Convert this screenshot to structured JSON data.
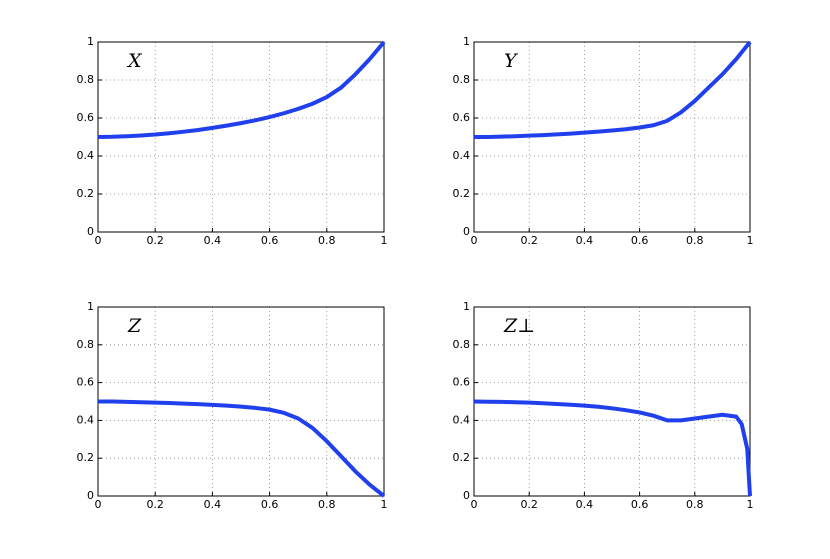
{
  "chart_data": [
    {
      "type": "line",
      "annotation": "X",
      "x": [
        0,
        0.05,
        0.1,
        0.15,
        0.2,
        0.25,
        0.3,
        0.35,
        0.4,
        0.45,
        0.5,
        0.55,
        0.6,
        0.65,
        0.7,
        0.75,
        0.8,
        0.85,
        0.9,
        0.95,
        1
      ],
      "series": [
        {
          "color": "#2040ee",
          "values": [
            0.5,
            0.501,
            0.504,
            0.508,
            0.513,
            0.52,
            0.528,
            0.537,
            0.548,
            0.56,
            0.573,
            0.588,
            0.605,
            0.625,
            0.648,
            0.675,
            0.71,
            0.76,
            0.83,
            0.91,
            1.0
          ]
        }
      ],
      "xlim": [
        0,
        1
      ],
      "ylim": [
        0,
        1
      ],
      "xticks": [
        0,
        0.2,
        0.4,
        0.6,
        0.8,
        1
      ],
      "yticks": [
        0,
        0.2,
        0.4,
        0.6,
        0.8,
        1
      ],
      "grid": true
    },
    {
      "type": "line",
      "annotation": "Y",
      "x": [
        0,
        0.05,
        0.1,
        0.15,
        0.2,
        0.25,
        0.3,
        0.35,
        0.4,
        0.45,
        0.5,
        0.55,
        0.6,
        0.65,
        0.7,
        0.75,
        0.8,
        0.85,
        0.9,
        0.95,
        1
      ],
      "series": [
        {
          "color": "#2040ee",
          "values": [
            0.5,
            0.5,
            0.502,
            0.504,
            0.507,
            0.51,
            0.514,
            0.518,
            0.523,
            0.528,
            0.534,
            0.541,
            0.55,
            0.562,
            0.585,
            0.63,
            0.69,
            0.76,
            0.83,
            0.91,
            1.0
          ]
        }
      ],
      "xlim": [
        0,
        1
      ],
      "ylim": [
        0,
        1
      ],
      "xticks": [
        0,
        0.2,
        0.4,
        0.6,
        0.8,
        1
      ],
      "yticks": [
        0,
        0.2,
        0.4,
        0.6,
        0.8,
        1
      ],
      "grid": true
    },
    {
      "type": "line",
      "annotation": "Z",
      "x": [
        0,
        0.05,
        0.1,
        0.15,
        0.2,
        0.25,
        0.3,
        0.35,
        0.4,
        0.45,
        0.5,
        0.55,
        0.6,
        0.65,
        0.7,
        0.75,
        0.8,
        0.85,
        0.9,
        0.95,
        1
      ],
      "series": [
        {
          "color": "#2040ee",
          "values": [
            0.5,
            0.5,
            0.498,
            0.496,
            0.494,
            0.492,
            0.489,
            0.486,
            0.482,
            0.478,
            0.473,
            0.466,
            0.457,
            0.44,
            0.41,
            0.36,
            0.29,
            0.21,
            0.13,
            0.06,
            0.0
          ]
        }
      ],
      "xlim": [
        0,
        1
      ],
      "ylim": [
        0,
        1
      ],
      "xticks": [
        0,
        0.2,
        0.4,
        0.6,
        0.8,
        1
      ],
      "yticks": [
        0,
        0.2,
        0.4,
        0.6,
        0.8,
        1
      ],
      "grid": true
    },
    {
      "type": "line",
      "annotation": "Z⊥",
      "x": [
        0,
        0.05,
        0.1,
        0.15,
        0.2,
        0.25,
        0.3,
        0.35,
        0.4,
        0.45,
        0.5,
        0.55,
        0.6,
        0.65,
        0.7,
        0.75,
        0.8,
        0.85,
        0.9,
        0.95,
        0.97,
        0.99,
        1
      ],
      "series": [
        {
          "color": "#2040ee",
          "values": [
            0.5,
            0.499,
            0.498,
            0.496,
            0.494,
            0.491,
            0.487,
            0.483,
            0.478,
            0.472,
            0.464,
            0.454,
            0.442,
            0.425,
            0.4,
            0.4,
            0.41,
            0.42,
            0.43,
            0.42,
            0.38,
            0.25,
            0.0
          ]
        }
      ],
      "xlim": [
        0,
        1
      ],
      "ylim": [
        0,
        1
      ],
      "xticks": [
        0,
        0.2,
        0.4,
        0.6,
        0.8,
        1
      ],
      "yticks": [
        0,
        0.2,
        0.4,
        0.6,
        0.8,
        1
      ],
      "grid": true
    }
  ]
}
